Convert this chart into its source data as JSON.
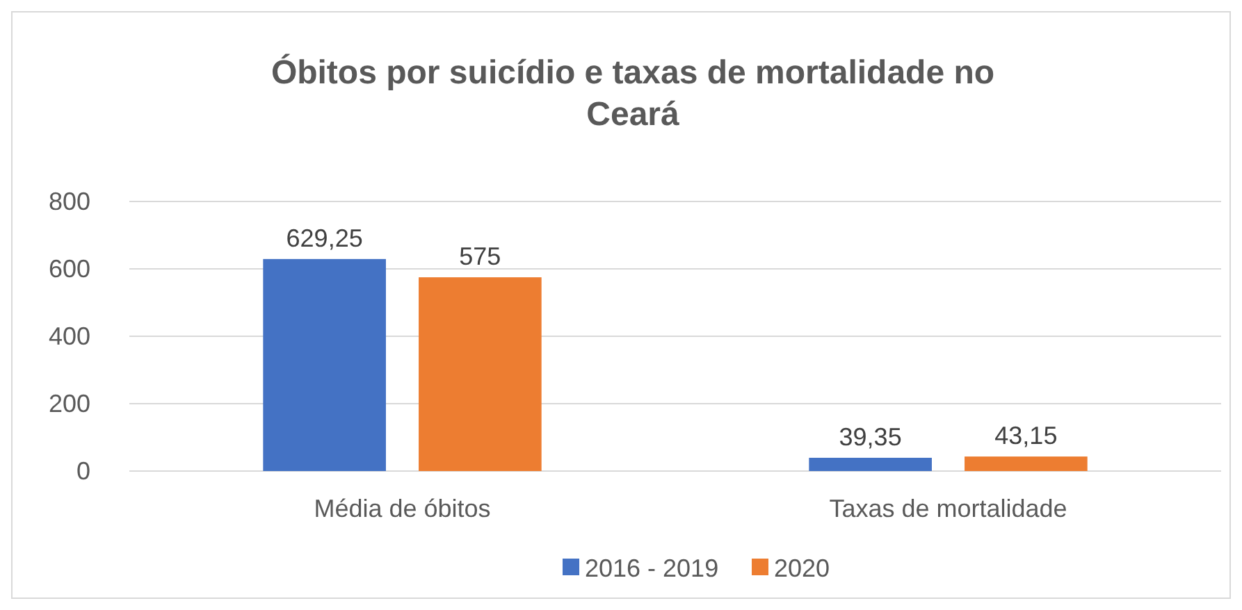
{
  "chart_data": {
    "type": "bar",
    "title": "Óbitos por suicídio e taxas de mortalidade no Ceará",
    "categories": [
      "Média de óbitos",
      "Taxas de mortalidade"
    ],
    "series": [
      {
        "name": "2016 - 2019",
        "color": "#4472c4",
        "values": [
          629.25,
          39.35
        ],
        "value_labels": [
          "629,25",
          "39,35"
        ]
      },
      {
        "name": "2020",
        "color": "#ed7d31",
        "values": [
          575,
          43.15
        ],
        "value_labels": [
          "575",
          "43,15"
        ]
      }
    ],
    "ylim": [
      0,
      800
    ],
    "yticks": [
      0,
      200,
      400,
      600,
      800
    ],
    "grid": "y",
    "legend": "bottom"
  }
}
